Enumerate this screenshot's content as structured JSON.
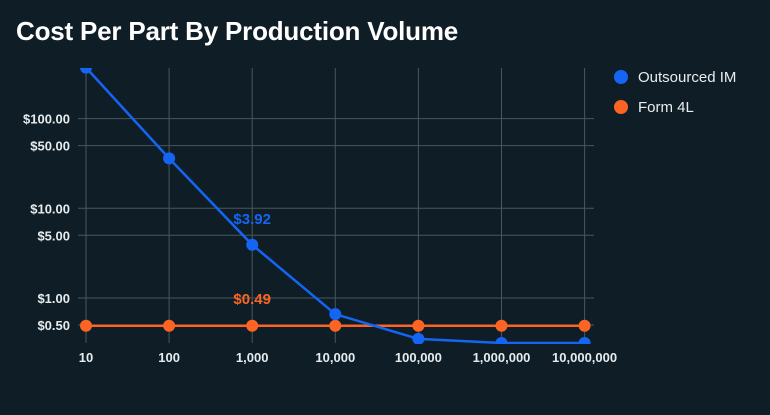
{
  "chart_data": {
    "type": "line",
    "title": "Cost Per Part By Production Volume",
    "xlabel": "",
    "ylabel": "",
    "x_scale": "log",
    "y_scale": "log",
    "x": [
      10,
      100,
      1000,
      10000,
      100000,
      1000000,
      10000000
    ],
    "x_tick_labels": [
      "10",
      "100",
      "1,000",
      "10,000",
      "100,000",
      "1,000,000",
      "10,000,000"
    ],
    "y_ticks": [
      0.5,
      1,
      5,
      10,
      50,
      100
    ],
    "y_tick_labels": [
      "$0.50",
      "$1.00",
      "$5.00",
      "$10.00",
      "$50.00",
      "$100.00"
    ],
    "ylim": [
      0.3,
      370
    ],
    "grid": true,
    "legend_position": "top-right",
    "series": [
      {
        "name": "Outsourced IM",
        "color": "#1565f5",
        "values": [
          370,
          36,
          3.92,
          0.66,
          0.35,
          0.3,
          0.3
        ]
      },
      {
        "name": "Form 4L",
        "color": "#fb6423",
        "values": [
          0.49,
          0.49,
          0.49,
          0.49,
          0.49,
          0.49,
          0.49
        ]
      }
    ],
    "annotations": [
      {
        "text": "$3.92",
        "series": 0,
        "x": 1000,
        "y": 3.92,
        "color": "#1565f5"
      },
      {
        "text": "$0.49",
        "series": 1,
        "x": 1000,
        "y": 0.49,
        "color": "#fb6423"
      }
    ]
  },
  "colors": {
    "background": "#0f1e26",
    "grid": "#4a565c",
    "text": "#ffffff"
  }
}
